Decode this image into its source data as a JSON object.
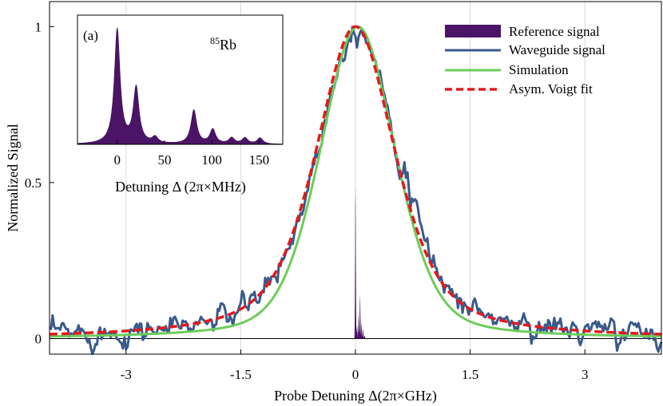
{
  "chart_data": [
    {
      "type": "line",
      "title": "",
      "xlabel": "Probe Detuning Δ(2π×GHz)",
      "ylabel": "Normalized Signal",
      "xlim": [
        -4,
        4
      ],
      "ylim": [
        -0.05,
        1.08
      ],
      "x_ticks": [
        -3,
        -1.5,
        0,
        1.5,
        3
      ],
      "x_tick_labels": [
        "-3",
        "-1.5",
        "0",
        "1.5",
        "3"
      ],
      "y_ticks": [
        0,
        0.5,
        1
      ],
      "y_tick_labels": [
        "0",
        "0.5",
        "1"
      ],
      "grid": "vertical",
      "legend_position": "top-right",
      "series": [
        {
          "name": "Reference signal",
          "style": "filled-area",
          "color": "#4b1466",
          "x": [
            0.0,
            0.02,
            0.04,
            0.06,
            0.08,
            0.1,
            0.12
          ],
          "values": [
            0.49,
            0.04,
            0.08,
            0.14,
            0.05,
            0.03,
            0.01
          ]
        },
        {
          "name": "Waveguide signal",
          "style": "noisy-line",
          "color": "#3a5a8c",
          "center": 0.03,
          "hwhm": 0.65,
          "peak": 1.0,
          "noise_std": 0.02
        },
        {
          "name": "Simulation",
          "style": "solid-line",
          "color": "#6dcd59",
          "center": 0.03,
          "hwhm": 0.57,
          "peak": 1.0
        },
        {
          "name": "Asym. Voigt fit",
          "style": "dashed-line",
          "color": "#e31a1c",
          "center": 0.0,
          "hwhm": 0.62,
          "peak": 1.0
        }
      ]
    },
    {
      "type": "area",
      "title": "(a)",
      "annotation": "85Rb",
      "annotation_sup": "85",
      "annotation_base": "Rb",
      "xlabel": "Detuning Δ (2π×MHz)",
      "ylabel": "",
      "xlim": [
        -42,
        175
      ],
      "ylim": [
        0,
        1.07
      ],
      "x_ticks": [
        0,
        50,
        100,
        150
      ],
      "x_tick_labels": [
        "0",
        "50",
        "100",
        "150"
      ],
      "color": "#4b1466",
      "peaks": [
        {
          "center": 0,
          "height": 0.95
        },
        {
          "center": 20,
          "height": 0.46
        },
        {
          "center": 40,
          "height": 0.05
        },
        {
          "center": 81,
          "height": 0.28
        },
        {
          "center": 101,
          "height": 0.12
        },
        {
          "center": 121,
          "height": 0.05
        },
        {
          "center": 135,
          "height": 0.05
        },
        {
          "center": 151,
          "height": 0.05
        }
      ]
    }
  ]
}
